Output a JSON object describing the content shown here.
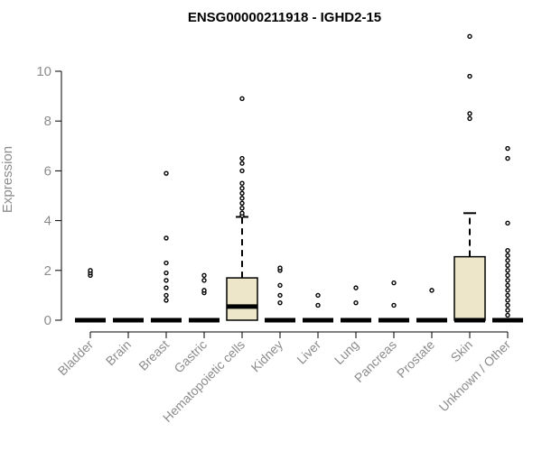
{
  "chart_data": {
    "type": "box",
    "title": "ENSG00000211918 - IGHD2-15",
    "xlabel": "",
    "ylabel": "Expression",
    "ylim": [
      0,
      11.5
    ],
    "yticks": [
      0,
      2,
      4,
      6,
      8,
      10
    ],
    "box_fill": "#ede6c9",
    "categories": [
      "Bladder",
      "Brain",
      "Breast",
      "Gastric",
      "Hematopoietic cells",
      "Kidney",
      "Liver",
      "Lung",
      "Pancreas",
      "Prostate",
      "Skin",
      "Unknown / Other"
    ],
    "boxes": [
      {
        "q1": 0,
        "median": 0,
        "q3": 0,
        "whisker_low": 0,
        "whisker_high": 0,
        "outliers": [
          1.8,
          1.9,
          2.0
        ]
      },
      {
        "q1": 0,
        "median": 0,
        "q3": 0,
        "whisker_low": 0,
        "whisker_high": 0,
        "outliers": []
      },
      {
        "q1": 0,
        "median": 0,
        "q3": 0,
        "whisker_low": 0,
        "whisker_high": 0,
        "outliers": [
          0.8,
          1.0,
          1.3,
          1.6,
          1.9,
          2.3,
          3.3,
          5.9
        ]
      },
      {
        "q1": 0,
        "median": 0,
        "q3": 0,
        "whisker_low": 0,
        "whisker_high": 0,
        "outliers": [
          1.1,
          1.2,
          1.6,
          1.8
        ]
      },
      {
        "q1": 0,
        "median": 0.55,
        "q3": 1.7,
        "whisker_low": 0,
        "whisker_high": 4.15,
        "outliers": [
          4.2,
          4.3,
          4.5,
          4.7,
          4.9,
          5.1,
          5.3,
          5.5,
          6.0,
          6.3,
          6.5,
          8.9
        ]
      },
      {
        "q1": 0,
        "median": 0,
        "q3": 0,
        "whisker_low": 0,
        "whisker_high": 0,
        "outliers": [
          0.7,
          1.0,
          1.4,
          2.0,
          2.1
        ]
      },
      {
        "q1": 0,
        "median": 0,
        "q3": 0,
        "whisker_low": 0,
        "whisker_high": 0,
        "outliers": [
          0.6,
          1.0
        ]
      },
      {
        "q1": 0,
        "median": 0,
        "q3": 0,
        "whisker_low": 0,
        "whisker_high": 0,
        "outliers": [
          0.7,
          1.3
        ]
      },
      {
        "q1": 0,
        "median": 0,
        "q3": 0,
        "whisker_low": 0,
        "whisker_high": 0,
        "outliers": [
          0.6,
          1.5
        ]
      },
      {
        "q1": 0,
        "median": 0,
        "q3": 0,
        "whisker_low": 0,
        "whisker_high": 0,
        "outliers": [
          1.2
        ]
      },
      {
        "q1": 0,
        "median": 0,
        "q3": 2.55,
        "whisker_low": 0,
        "whisker_high": 4.3,
        "outliers": [
          8.1,
          8.3,
          9.8,
          11.4
        ]
      },
      {
        "q1": 0,
        "median": 0,
        "q3": 0,
        "whisker_low": 0,
        "whisker_high": 0,
        "outliers": [
          0.2,
          0.4,
          0.6,
          0.8,
          1.0,
          1.2,
          1.4,
          1.6,
          1.8,
          2.0,
          2.2,
          2.4,
          2.6,
          2.8,
          3.9,
          6.5,
          6.9
        ]
      }
    ]
  }
}
